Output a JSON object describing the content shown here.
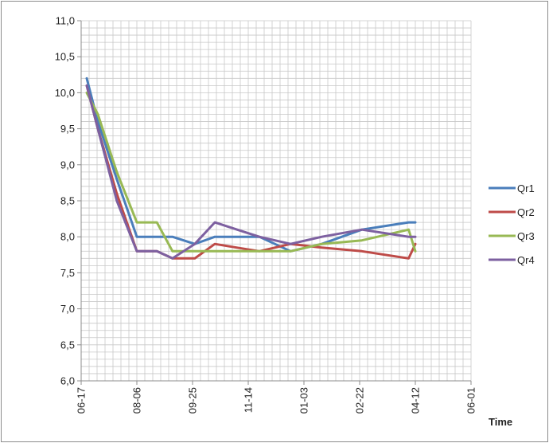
{
  "chart_data": {
    "type": "line",
    "title": "",
    "xlabel": "Time",
    "ylabel": "",
    "xlim": [
      "06-17",
      "06-01"
    ],
    "ylim": [
      6.0,
      11.0
    ],
    "grid": true,
    "legend_position": "right",
    "x_tick_labels": [
      "06-17",
      "08-06",
      "09-25",
      "11-14",
      "01-03",
      "02-22",
      "04-12",
      "06-01"
    ],
    "y_tick_labels": [
      "6,0",
      "6,5",
      "7,0",
      "7,5",
      "8,0",
      "8,5",
      "9,0",
      "9,5",
      "10,0",
      "10,5",
      "11,0"
    ],
    "x_tick_days": [
      0,
      50,
      100,
      150,
      200,
      250,
      300,
      350
    ],
    "x": [
      5,
      15,
      32,
      50,
      68,
      82,
      102,
      120,
      140,
      160,
      188,
      216,
      252,
      294,
      300
    ],
    "series": [
      {
        "name": "Qr1",
        "color": "#4a7ebb",
        "values": [
          10.2,
          9.6,
          8.8,
          8.0,
          8.0,
          8.0,
          7.9,
          8.0,
          8.0,
          8.0,
          7.8,
          7.9,
          8.1,
          8.2,
          8.2
        ]
      },
      {
        "name": "Qr2",
        "color": "#be4b48",
        "values": [
          10.1,
          9.5,
          8.6,
          7.8,
          7.8,
          7.7,
          7.7,
          7.9,
          7.85,
          7.8,
          7.9,
          7.85,
          7.8,
          7.7,
          7.9
        ]
      },
      {
        "name": "Qr3",
        "color": "#98b954",
        "values": [
          10.0,
          9.7,
          8.9,
          8.2,
          8.2,
          7.8,
          7.8,
          7.8,
          7.8,
          7.8,
          7.8,
          7.9,
          7.95,
          8.1,
          7.8
        ]
      },
      {
        "name": "Qr4",
        "color": "#7d60a0",
        "values": [
          10.1,
          9.5,
          8.5,
          7.8,
          7.8,
          7.7,
          7.9,
          8.2,
          8.1,
          8.0,
          7.9,
          8.0,
          8.1,
          8.0,
          8.0
        ]
      }
    ]
  }
}
